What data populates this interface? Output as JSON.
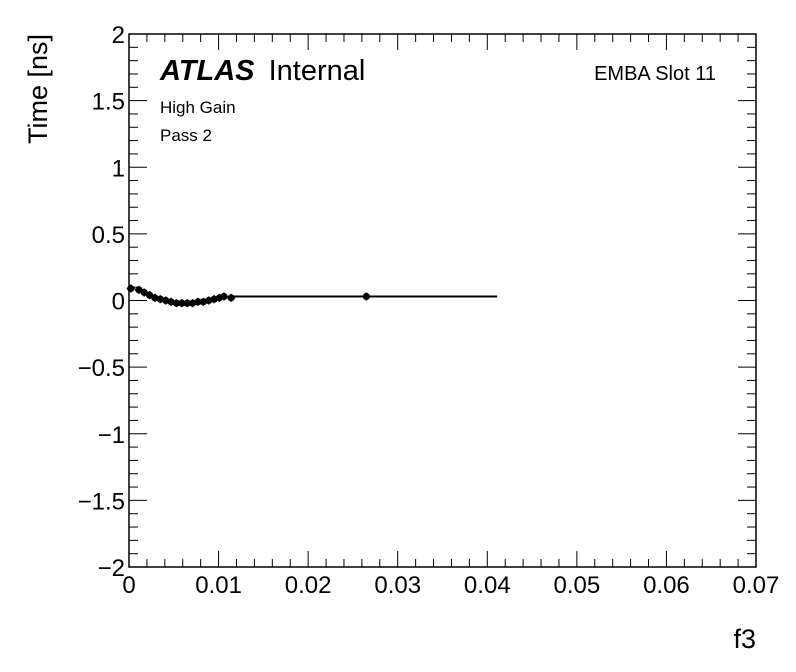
{
  "chart_data": {
    "type": "scatter",
    "title": "",
    "xlabel": "f3",
    "ylabel": "Time [ns]",
    "xlim": [
      0,
      0.07
    ],
    "ylim": [
      -2,
      2
    ],
    "x_ticks": [
      0,
      0.01,
      0.02,
      0.03,
      0.04,
      0.05,
      0.06,
      0.07
    ],
    "x_tick_labels": [
      "0",
      "0.01",
      "0.02",
      "0.03",
      "0.04",
      "0.05",
      "0.06",
      "0.07"
    ],
    "y_ticks": [
      -2,
      -1.5,
      -1,
      -0.5,
      0,
      0.5,
      1,
      1.5,
      2
    ],
    "y_tick_labels": [
      "−2",
      "−1.5",
      "−1",
      "−0.5",
      "0",
      "0.5",
      "1",
      "1.5",
      "2"
    ],
    "grid": false,
    "annotations": {
      "atlas_bold": "ATLAS",
      "atlas_rest": "Internal",
      "module": "EMBA Slot 11",
      "gain": "High Gain",
      "pass": "Pass 2"
    },
    "series": [
      {
        "kind": "points",
        "points": [
          {
            "x": 0.0002,
            "y": 0.09
          },
          {
            "x": 0.0011,
            "y": 0.08
          },
          {
            "x": 0.0017,
            "y": 0.06
          },
          {
            "x": 0.0023,
            "y": 0.04
          },
          {
            "x": 0.0029,
            "y": 0.02
          },
          {
            "x": 0.0035,
            "y": 0.01
          },
          {
            "x": 0.0041,
            "y": 0.0
          },
          {
            "x": 0.0047,
            "y": -0.01
          },
          {
            "x": 0.0053,
            "y": -0.02
          },
          {
            "x": 0.0059,
            "y": -0.02
          },
          {
            "x": 0.0065,
            "y": -0.02
          },
          {
            "x": 0.0071,
            "y": -0.02
          },
          {
            "x": 0.0077,
            "y": -0.01
          },
          {
            "x": 0.0083,
            "y": -0.01
          },
          {
            "x": 0.0089,
            "y": 0.0
          },
          {
            "x": 0.0095,
            "y": 0.01
          },
          {
            "x": 0.0101,
            "y": 0.02
          },
          {
            "x": 0.0106,
            "y": 0.03
          },
          {
            "x": 0.0114,
            "y": 0.02
          },
          {
            "x": 0.0265,
            "y": 0.03
          }
        ],
        "yerr": 0.03
      },
      {
        "kind": "line",
        "x": [
          0.0114,
          0.0411
        ],
        "y": [
          0.03,
          0.03
        ]
      }
    ]
  }
}
